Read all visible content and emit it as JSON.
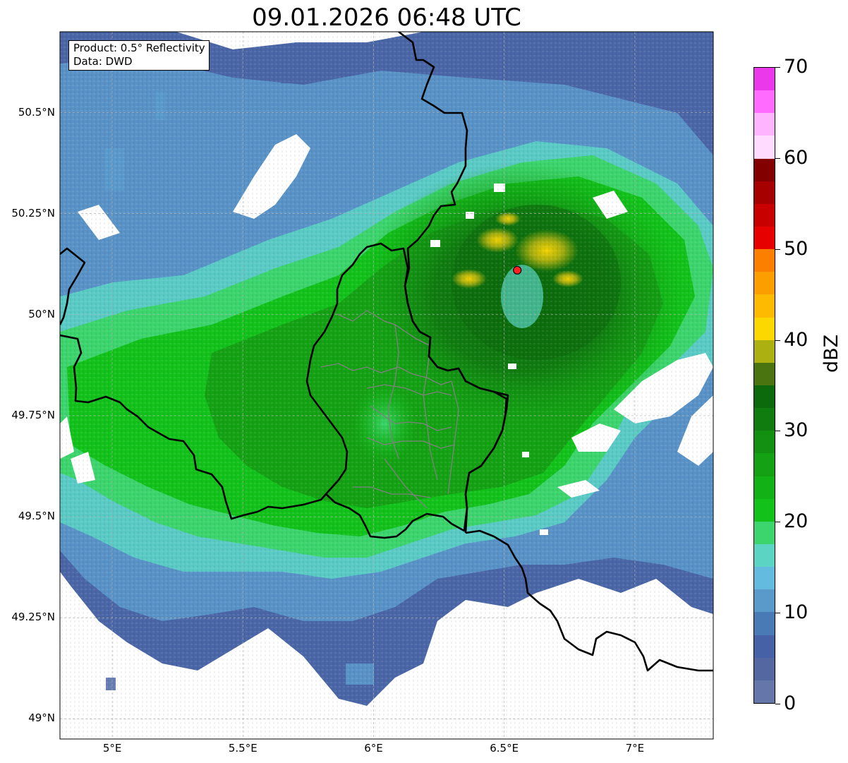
{
  "title": "09.01.2026 06:48 UTC",
  "info_box": {
    "product": "Product: 0.5° Reflectivity",
    "source": "Data: DWD"
  },
  "map": {
    "lon_range": [
      4.8,
      7.3
    ],
    "lat_range": [
      48.95,
      50.7
    ],
    "lat_ticks": [
      {
        "value": 50.5,
        "label": "50.5°N"
      },
      {
        "value": 50.25,
        "label": "50.25°N"
      },
      {
        "value": 50.0,
        "label": "50°N"
      },
      {
        "value": 49.75,
        "label": "49.75°N"
      },
      {
        "value": 49.5,
        "label": "49.5°N"
      },
      {
        "value": 49.25,
        "label": "49.25°N"
      },
      {
        "value": 49.0,
        "label": "49°N"
      }
    ],
    "lon_ticks": [
      {
        "value": 5.0,
        "label": "5°E"
      },
      {
        "value": 5.5,
        "label": "5.5°E"
      },
      {
        "value": 6.0,
        "label": "6°E"
      },
      {
        "value": 6.5,
        "label": "6.5°E"
      },
      {
        "value": 7.0,
        "label": "7°E"
      }
    ],
    "radar_site": {
      "lon": 6.55,
      "lat": 50.11
    },
    "colors": {
      "border": "#000000",
      "admin": "#808080",
      "grid": "#b0b0b0",
      "site": "#ff2020"
    }
  },
  "colorbar": {
    "unit": "dBZ",
    "ticks": [
      {
        "value": 0,
        "label": "0"
      },
      {
        "value": 10,
        "label": "10"
      },
      {
        "value": 20,
        "label": "20"
      },
      {
        "value": 30,
        "label": "30"
      },
      {
        "value": 40,
        "label": "40"
      },
      {
        "value": 50,
        "label": "50"
      },
      {
        "value": 60,
        "label": "60"
      },
      {
        "value": 70,
        "label": "70"
      }
    ],
    "range": [
      0,
      70
    ],
    "colors": [
      "#6576a8",
      "#5567a0",
      "#4661a6",
      "#4a7ab6",
      "#5a9acb",
      "#63bcdf",
      "#5bd4c4",
      "#3cd46c",
      "#12c21a",
      "#12b116",
      "#14a214",
      "#138f12",
      "#107c10",
      "#0c6a0c",
      "#4a7410",
      "#acb010",
      "#fdd700",
      "#fdba00",
      "#fd9e00",
      "#fd7f00",
      "#e60000",
      "#c80000",
      "#a60000",
      "#820000",
      "#ffdcff",
      "#ffb4ff",
      "#ff6bff",
      "#ea38ea"
    ]
  }
}
